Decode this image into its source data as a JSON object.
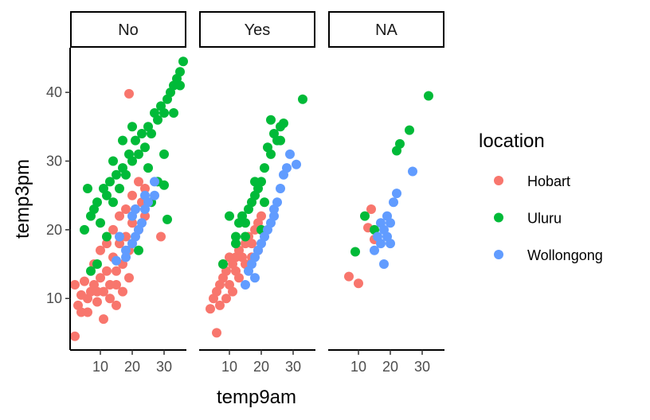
{
  "chart_data": {
    "type": "scatter",
    "xlabel": "temp9am",
    "ylabel": "temp3pm",
    "xlim": [
      0.5,
      37
    ],
    "ylim": [
      2.5,
      46.5
    ],
    "x_ticks": [
      10,
      20,
      30
    ],
    "y_ticks": [
      10,
      20,
      30,
      40
    ],
    "legend": {
      "title": "location",
      "position": "right",
      "entries": [
        {
          "name": "Hobart",
          "color": "#F8766D"
        },
        {
          "name": "Uluru",
          "color": "#00BA38"
        },
        {
          "name": "Wollongong",
          "color": "#619CFF"
        }
      ]
    },
    "facets": [
      {
        "label": "No",
        "series": [
          {
            "name": "Hobart",
            "points": [
              [
                2,
                4.5
              ],
              [
                4,
                10.5
              ],
              [
                2,
                12
              ],
              [
                3,
                9
              ],
              [
                5,
                12.5
              ],
              [
                6,
                10
              ],
              [
                7,
                11
              ],
              [
                8,
                12
              ],
              [
                9,
                9.5
              ],
              [
                10,
                13
              ],
              [
                11,
                11
              ],
              [
                12,
                14
              ],
              [
                13,
                12
              ],
              [
                14,
                16
              ],
              [
                15,
                14
              ],
              [
                16,
                18
              ],
              [
                17,
                15
              ],
              [
                18,
                19
              ],
              [
                19,
                17
              ],
              [
                20,
                21
              ],
              [
                21,
                23
              ],
              [
                22,
                20
              ],
              [
                23,
                24
              ],
              [
                24,
                22
              ],
              [
                11,
                7
              ],
              [
                13,
                10
              ],
              [
                15,
                9
              ],
              [
                17,
                11
              ],
              [
                19,
                13
              ],
              [
                8,
                15
              ],
              [
                10,
                17
              ],
              [
                12,
                18
              ],
              [
                14,
                20
              ],
              [
                16,
                22
              ],
              [
                18,
                23
              ],
              [
                20,
                25
              ],
              [
                22,
                27
              ],
              [
                24,
                26
              ],
              [
                19,
                39.8
              ],
              [
                29,
                19
              ],
              [
                6,
                8
              ],
              [
                4,
                8
              ],
              [
                9,
                11
              ],
              [
                15,
                12
              ],
              [
                25,
                24
              ]
            ]
          },
          {
            "name": "Uluru",
            "points": [
              [
                5,
                20
              ],
              [
                7,
                22
              ],
              [
                9,
                24
              ],
              [
                11,
                26
              ],
              [
                13,
                27
              ],
              [
                15,
                28
              ],
              [
                17,
                29
              ],
              [
                19,
                31
              ],
              [
                21,
                33
              ],
              [
                23,
                34
              ],
              [
                25,
                35
              ],
              [
                27,
                37
              ],
              [
                29,
                38
              ],
              [
                31,
                39
              ],
              [
                33,
                41
              ],
              [
                35,
                43
              ],
              [
                36,
                44.5
              ],
              [
                6,
                26
              ],
              [
                8,
                23
              ],
              [
                10,
                21
              ],
              [
                12,
                19
              ],
              [
                14,
                24
              ],
              [
                16,
                26
              ],
              [
                18,
                28
              ],
              [
                20,
                30
              ],
              [
                22,
                31
              ],
              [
                24,
                32
              ],
              [
                26,
                34
              ],
              [
                28,
                36
              ],
              [
                30,
                37
              ],
              [
                32,
                40
              ],
              [
                34,
                42
              ],
              [
                7,
                14
              ],
              [
                9,
                15
              ],
              [
                31,
                21.5
              ],
              [
                30,
                26.5
              ],
              [
                22,
                17
              ],
              [
                26,
                24
              ],
              [
                28,
                27
              ],
              [
                33,
                37
              ],
              [
                35,
                41
              ],
              [
                20,
                35
              ],
              [
                17,
                33
              ],
              [
                12,
                25
              ],
              [
                14,
                30
              ],
              [
                30,
                31
              ],
              [
                25,
                29
              ]
            ]
          },
          {
            "name": "Wollongong",
            "points": [
              [
                15,
                15.5
              ],
              [
                18,
                16
              ],
              [
                20,
                18
              ],
              [
                21,
                19
              ],
              [
                22,
                20
              ],
              [
                23,
                21
              ],
              [
                24,
                23
              ],
              [
                25,
                24
              ],
              [
                20,
                22
              ],
              [
                16,
                19
              ],
              [
                24,
                25
              ],
              [
                27,
                25
              ],
              [
                27,
                27
              ],
              [
                18,
                17
              ],
              [
                21,
                23
              ]
            ]
          }
        ]
      },
      {
        "label": "Yes",
        "series": [
          {
            "name": "Hobart",
            "points": [
              [
                6,
                5
              ],
              [
                4,
                8.5
              ],
              [
                5,
                10
              ],
              [
                6,
                11
              ],
              [
                7,
                12
              ],
              [
                8,
                13
              ],
              [
                9,
                14
              ],
              [
                10,
                12
              ],
              [
                11,
                15
              ],
              [
                12,
                16
              ],
              [
                13,
                17
              ],
              [
                14,
                16
              ],
              [
                15,
                18
              ],
              [
                16,
                19
              ],
              [
                17,
                18
              ],
              [
                18,
                20
              ],
              [
                19,
                21
              ],
              [
                20,
                22
              ],
              [
                7,
                9
              ],
              [
                9,
                10
              ],
              [
                11,
                11
              ],
              [
                13,
                13
              ],
              [
                15,
                15
              ],
              [
                17,
                16
              ],
              [
                19,
                17
              ],
              [
                8,
                15
              ],
              [
                10,
                16
              ],
              [
                12,
                14
              ]
            ]
          },
          {
            "name": "Uluru",
            "points": [
              [
                8,
                15
              ],
              [
                12,
                19
              ],
              [
                13,
                21
              ],
              [
                14,
                22
              ],
              [
                15,
                21
              ],
              [
                16,
                23
              ],
              [
                17,
                24
              ],
              [
                18,
                25
              ],
              [
                19,
                26
              ],
              [
                20,
                27
              ],
              [
                21,
                29
              ],
              [
                22,
                32
              ],
              [
                23,
                31
              ],
              [
                24,
                34
              ],
              [
                25,
                33
              ],
              [
                26,
                35
              ],
              [
                27,
                35.5
              ],
              [
                33,
                39
              ],
              [
                23,
                36
              ],
              [
                10,
                22
              ],
              [
                12,
                18
              ],
              [
                20,
                20
              ],
              [
                15,
                19
              ],
              [
                18,
                27
              ],
              [
                21,
                24
              ],
              [
                26,
                33
              ]
            ]
          },
          {
            "name": "Wollongong",
            "points": [
              [
                15,
                12
              ],
              [
                16,
                14
              ],
              [
                17,
                15
              ],
              [
                18,
                16
              ],
              [
                19,
                17
              ],
              [
                20,
                18
              ],
              [
                21,
                19
              ],
              [
                22,
                20
              ],
              [
                23,
                21
              ],
              [
                24,
                22
              ],
              [
                25,
                24
              ],
              [
                26,
                26
              ],
              [
                27,
                28
              ],
              [
                31,
                29.5
              ],
              [
                28,
                29
              ],
              [
                29,
                31
              ],
              [
                24,
                23
              ],
              [
                18,
                13
              ]
            ]
          }
        ]
      },
      {
        "label": "NA",
        "series": [
          {
            "name": "Hobart",
            "points": [
              [
                7,
                13.2
              ],
              [
                10,
                12.2
              ],
              [
                13,
                20.3
              ],
              [
                14,
                23
              ],
              [
                15,
                18.6
              ]
            ]
          },
          {
            "name": "Uluru",
            "points": [
              [
                9,
                16.8
              ],
              [
                12,
                22
              ],
              [
                15,
                20
              ],
              [
                22,
                31.5
              ],
              [
                23,
                32.5
              ],
              [
                26,
                34.5
              ],
              [
                32,
                39.5
              ]
            ]
          },
          {
            "name": "Wollongong",
            "points": [
              [
                15,
                17
              ],
              [
                16,
                19
              ],
              [
                17,
                21
              ],
              [
                18,
                20
              ],
              [
                19,
                22
              ],
              [
                20,
                21
              ],
              [
                21,
                24
              ],
              [
                22,
                25.3
              ],
              [
                18,
                15
              ],
              [
                20,
                18
              ],
              [
                17,
                18
              ],
              [
                19,
                19
              ],
              [
                27,
                28.5
              ]
            ]
          }
        ]
      }
    ]
  }
}
